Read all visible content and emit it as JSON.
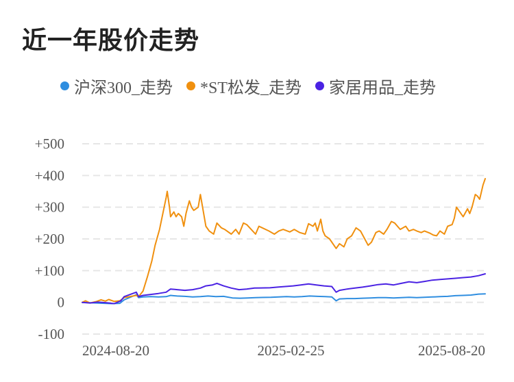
{
  "header": {
    "title": "近一年股价走势"
  },
  "colors": {
    "hs300": "#2f8ee0",
    "st": "#f0900f",
    "home": "#4a22e3",
    "grid": "#e6e6e6"
  },
  "chart_data": {
    "type": "line",
    "title": "近一年股价走势",
    "legend_position": "top-left",
    "grid": true,
    "ylim": [
      -100,
      500
    ],
    "y_ticks": [
      {
        "value": 500,
        "label": "+500"
      },
      {
        "value": 400,
        "label": "+400"
      },
      {
        "value": 300,
        "label": "+300"
      },
      {
        "value": 200,
        "label": "+200"
      },
      {
        "value": 100,
        "label": "+100"
      },
      {
        "value": 0,
        "label": "0"
      },
      {
        "value": -100,
        "label": "-100"
      }
    ],
    "x_ticks": [
      "2024-08-20",
      "2025-02-25",
      "2025-08-20"
    ],
    "x_range": [
      "2024-08-20",
      "2025-08-20"
    ],
    "series": [
      {
        "name": "沪深300_走势",
        "color": "#2f8ee0",
        "points": [
          [
            "2024-08-20",
            0
          ],
          [
            "2024-08-26",
            -1
          ],
          [
            "2024-09-02",
            -2
          ],
          [
            "2024-09-09",
            -3
          ],
          [
            "2024-09-16",
            -4
          ],
          [
            "2024-09-23",
            -3
          ],
          [
            "2024-09-27",
            8
          ],
          [
            "2024-10-08",
            24
          ],
          [
            "2024-10-10",
            15
          ],
          [
            "2024-10-14",
            17
          ],
          [
            "2024-10-21",
            18
          ],
          [
            "2024-10-28",
            17
          ],
          [
            "2024-11-04",
            18
          ],
          [
            "2024-11-08",
            22
          ],
          [
            "2024-11-14",
            20
          ],
          [
            "2024-11-21",
            19
          ],
          [
            "2024-11-28",
            17
          ],
          [
            "2024-12-05",
            18
          ],
          [
            "2024-12-12",
            20
          ],
          [
            "2024-12-19",
            18
          ],
          [
            "2024-12-26",
            19
          ],
          [
            "2025-01-03",
            14
          ],
          [
            "2025-01-10",
            13
          ],
          [
            "2025-01-17",
            14
          ],
          [
            "2025-01-24",
            15
          ],
          [
            "2025-02-07",
            16
          ],
          [
            "2025-02-14",
            17
          ],
          [
            "2025-02-21",
            18
          ],
          [
            "2025-02-28",
            17
          ],
          [
            "2025-03-07",
            18
          ],
          [
            "2025-03-14",
            20
          ],
          [
            "2025-03-21",
            19
          ],
          [
            "2025-03-28",
            18
          ],
          [
            "2025-04-03",
            17
          ],
          [
            "2025-04-07",
            5
          ],
          [
            "2025-04-10",
            11
          ],
          [
            "2025-04-17",
            12
          ],
          [
            "2025-04-24",
            12
          ],
          [
            "2025-05-01",
            13
          ],
          [
            "2025-05-08",
            14
          ],
          [
            "2025-05-15",
            15
          ],
          [
            "2025-05-22",
            15
          ],
          [
            "2025-05-29",
            14
          ],
          [
            "2025-06-05",
            15
          ],
          [
            "2025-06-12",
            16
          ],
          [
            "2025-06-19",
            15
          ],
          [
            "2025-06-26",
            16
          ],
          [
            "2025-07-03",
            17
          ],
          [
            "2025-07-10",
            18
          ],
          [
            "2025-07-17",
            19
          ],
          [
            "2025-07-24",
            21
          ],
          [
            "2025-07-31",
            22
          ],
          [
            "2025-08-07",
            23
          ],
          [
            "2025-08-14",
            26
          ],
          [
            "2025-08-20",
            27
          ]
        ]
      },
      {
        "name": "*ST松发_走势",
        "color": "#f0900f",
        "points": [
          [
            "2024-08-20",
            0
          ],
          [
            "2024-08-23",
            5
          ],
          [
            "2024-08-27",
            -2
          ],
          [
            "2024-09-02",
            3
          ],
          [
            "2024-09-06",
            8
          ],
          [
            "2024-09-10",
            4
          ],
          [
            "2024-09-13",
            9
          ],
          [
            "2024-09-18",
            3
          ],
          [
            "2024-09-23",
            5
          ],
          [
            "2024-09-27",
            15
          ],
          [
            "2024-10-08",
            22
          ],
          [
            "2024-10-10",
            18
          ],
          [
            "2024-10-14",
            35
          ],
          [
            "2024-10-18",
            80
          ],
          [
            "2024-10-22",
            130
          ],
          [
            "2024-10-25",
            180
          ],
          [
            "2024-10-29",
            230
          ],
          [
            "2024-11-01",
            280
          ],
          [
            "2024-11-04",
            330
          ],
          [
            "2024-11-05",
            350
          ],
          [
            "2024-11-07",
            300
          ],
          [
            "2024-11-08",
            270
          ],
          [
            "2024-11-11",
            285
          ],
          [
            "2024-11-13",
            270
          ],
          [
            "2024-11-15",
            280
          ],
          [
            "2024-11-18",
            270
          ],
          [
            "2024-11-20",
            240
          ],
          [
            "2024-11-22",
            280
          ],
          [
            "2024-11-25",
            320
          ],
          [
            "2024-11-27",
            300
          ],
          [
            "2024-11-29",
            290
          ],
          [
            "2024-12-03",
            300
          ],
          [
            "2024-12-05",
            340
          ],
          [
            "2024-12-07",
            300
          ],
          [
            "2024-12-10",
            240
          ],
          [
            "2024-12-13",
            225
          ],
          [
            "2024-12-17",
            215
          ],
          [
            "2024-12-20",
            250
          ],
          [
            "2024-12-24",
            235
          ],
          [
            "2024-12-27",
            230
          ],
          [
            "2025-01-02",
            215
          ],
          [
            "2025-01-06",
            230
          ],
          [
            "2025-01-09",
            215
          ],
          [
            "2025-01-13",
            250
          ],
          [
            "2025-01-16",
            245
          ],
          [
            "2025-01-20",
            230
          ],
          [
            "2025-01-24",
            215
          ],
          [
            "2025-01-27",
            240
          ],
          [
            "2025-02-05",
            225
          ],
          [
            "2025-02-10",
            215
          ],
          [
            "2025-02-14",
            225
          ],
          [
            "2025-02-18",
            230
          ],
          [
            "2025-02-24",
            222
          ],
          [
            "2025-02-28",
            230
          ],
          [
            "2025-03-05",
            220
          ],
          [
            "2025-03-10",
            215
          ],
          [
            "2025-03-13",
            248
          ],
          [
            "2025-03-17",
            240
          ],
          [
            "2025-03-19",
            250
          ],
          [
            "2025-03-21",
            225
          ],
          [
            "2025-03-24",
            262
          ],
          [
            "2025-03-26",
            225
          ],
          [
            "2025-03-28",
            210
          ],
          [
            "2025-04-01",
            200
          ],
          [
            "2025-04-07",
            170
          ],
          [
            "2025-04-10",
            185
          ],
          [
            "2025-04-14",
            175
          ],
          [
            "2025-04-17",
            200
          ],
          [
            "2025-04-21",
            210
          ],
          [
            "2025-04-25",
            235
          ],
          [
            "2025-04-29",
            225
          ],
          [
            "2025-05-06",
            180
          ],
          [
            "2025-05-09",
            190
          ],
          [
            "2025-05-13",
            220
          ],
          [
            "2025-05-16",
            225
          ],
          [
            "2025-05-20",
            215
          ],
          [
            "2025-05-23",
            230
          ],
          [
            "2025-05-27",
            255
          ],
          [
            "2025-05-30",
            250
          ],
          [
            "2025-06-04",
            230
          ],
          [
            "2025-06-09",
            240
          ],
          [
            "2025-06-12",
            225
          ],
          [
            "2025-06-16",
            230
          ],
          [
            "2025-06-19",
            225
          ],
          [
            "2025-06-23",
            220
          ],
          [
            "2025-06-26",
            225
          ],
          [
            "2025-07-01",
            218
          ],
          [
            "2025-07-04",
            212
          ],
          [
            "2025-07-07",
            210
          ],
          [
            "2025-07-10",
            225
          ],
          [
            "2025-07-14",
            215
          ],
          [
            "2025-07-17",
            240
          ],
          [
            "2025-07-21",
            245
          ],
          [
            "2025-07-23",
            265
          ],
          [
            "2025-07-25",
            300
          ],
          [
            "2025-07-28",
            285
          ],
          [
            "2025-07-31",
            270
          ],
          [
            "2025-08-04",
            295
          ],
          [
            "2025-08-06",
            280
          ],
          [
            "2025-08-08",
            300
          ],
          [
            "2025-08-11",
            340
          ],
          [
            "2025-08-13",
            335
          ],
          [
            "2025-08-15",
            325
          ],
          [
            "2025-08-18",
            370
          ],
          [
            "2025-08-20",
            390
          ]
        ]
      },
      {
        "name": "家居用品_走势",
        "color": "#4a22e3",
        "points": [
          [
            "2024-08-20",
            0
          ],
          [
            "2024-08-27",
            -2
          ],
          [
            "2024-09-03",
            1
          ],
          [
            "2024-09-10",
            -1
          ],
          [
            "2024-09-18",
            -4
          ],
          [
            "2024-09-24",
            5
          ],
          [
            "2024-09-27",
            18
          ],
          [
            "2024-10-08",
            32
          ],
          [
            "2024-10-10",
            18
          ],
          [
            "2024-10-14",
            22
          ],
          [
            "2024-10-21",
            25
          ],
          [
            "2024-10-28",
            28
          ],
          [
            "2024-11-04",
            32
          ],
          [
            "2024-11-08",
            42
          ],
          [
            "2024-11-14",
            40
          ],
          [
            "2024-11-21",
            38
          ],
          [
            "2024-11-28",
            40
          ],
          [
            "2024-12-05",
            45
          ],
          [
            "2024-12-10",
            52
          ],
          [
            "2024-12-16",
            55
          ],
          [
            "2024-12-20",
            60
          ],
          [
            "2024-12-26",
            52
          ],
          [
            "2025-01-02",
            45
          ],
          [
            "2025-01-09",
            40
          ],
          [
            "2025-01-16",
            42
          ],
          [
            "2025-01-23",
            45
          ],
          [
            "2025-02-06",
            46
          ],
          [
            "2025-02-13",
            48
          ],
          [
            "2025-02-20",
            50
          ],
          [
            "2025-02-27",
            52
          ],
          [
            "2025-03-06",
            55
          ],
          [
            "2025-03-13",
            58
          ],
          [
            "2025-03-20",
            55
          ],
          [
            "2025-03-27",
            52
          ],
          [
            "2025-04-03",
            50
          ],
          [
            "2025-04-07",
            32
          ],
          [
            "2025-04-10",
            38
          ],
          [
            "2025-04-17",
            42
          ],
          [
            "2025-04-24",
            45
          ],
          [
            "2025-05-01",
            48
          ],
          [
            "2025-05-08",
            52
          ],
          [
            "2025-05-15",
            56
          ],
          [
            "2025-05-22",
            58
          ],
          [
            "2025-05-29",
            55
          ],
          [
            "2025-06-05",
            60
          ],
          [
            "2025-06-12",
            65
          ],
          [
            "2025-06-19",
            62
          ],
          [
            "2025-06-26",
            66
          ],
          [
            "2025-07-03",
            70
          ],
          [
            "2025-07-10",
            72
          ],
          [
            "2025-07-17",
            74
          ],
          [
            "2025-07-24",
            76
          ],
          [
            "2025-07-31",
            78
          ],
          [
            "2025-08-07",
            80
          ],
          [
            "2025-08-14",
            84
          ],
          [
            "2025-08-20",
            90
          ]
        ]
      }
    ]
  }
}
